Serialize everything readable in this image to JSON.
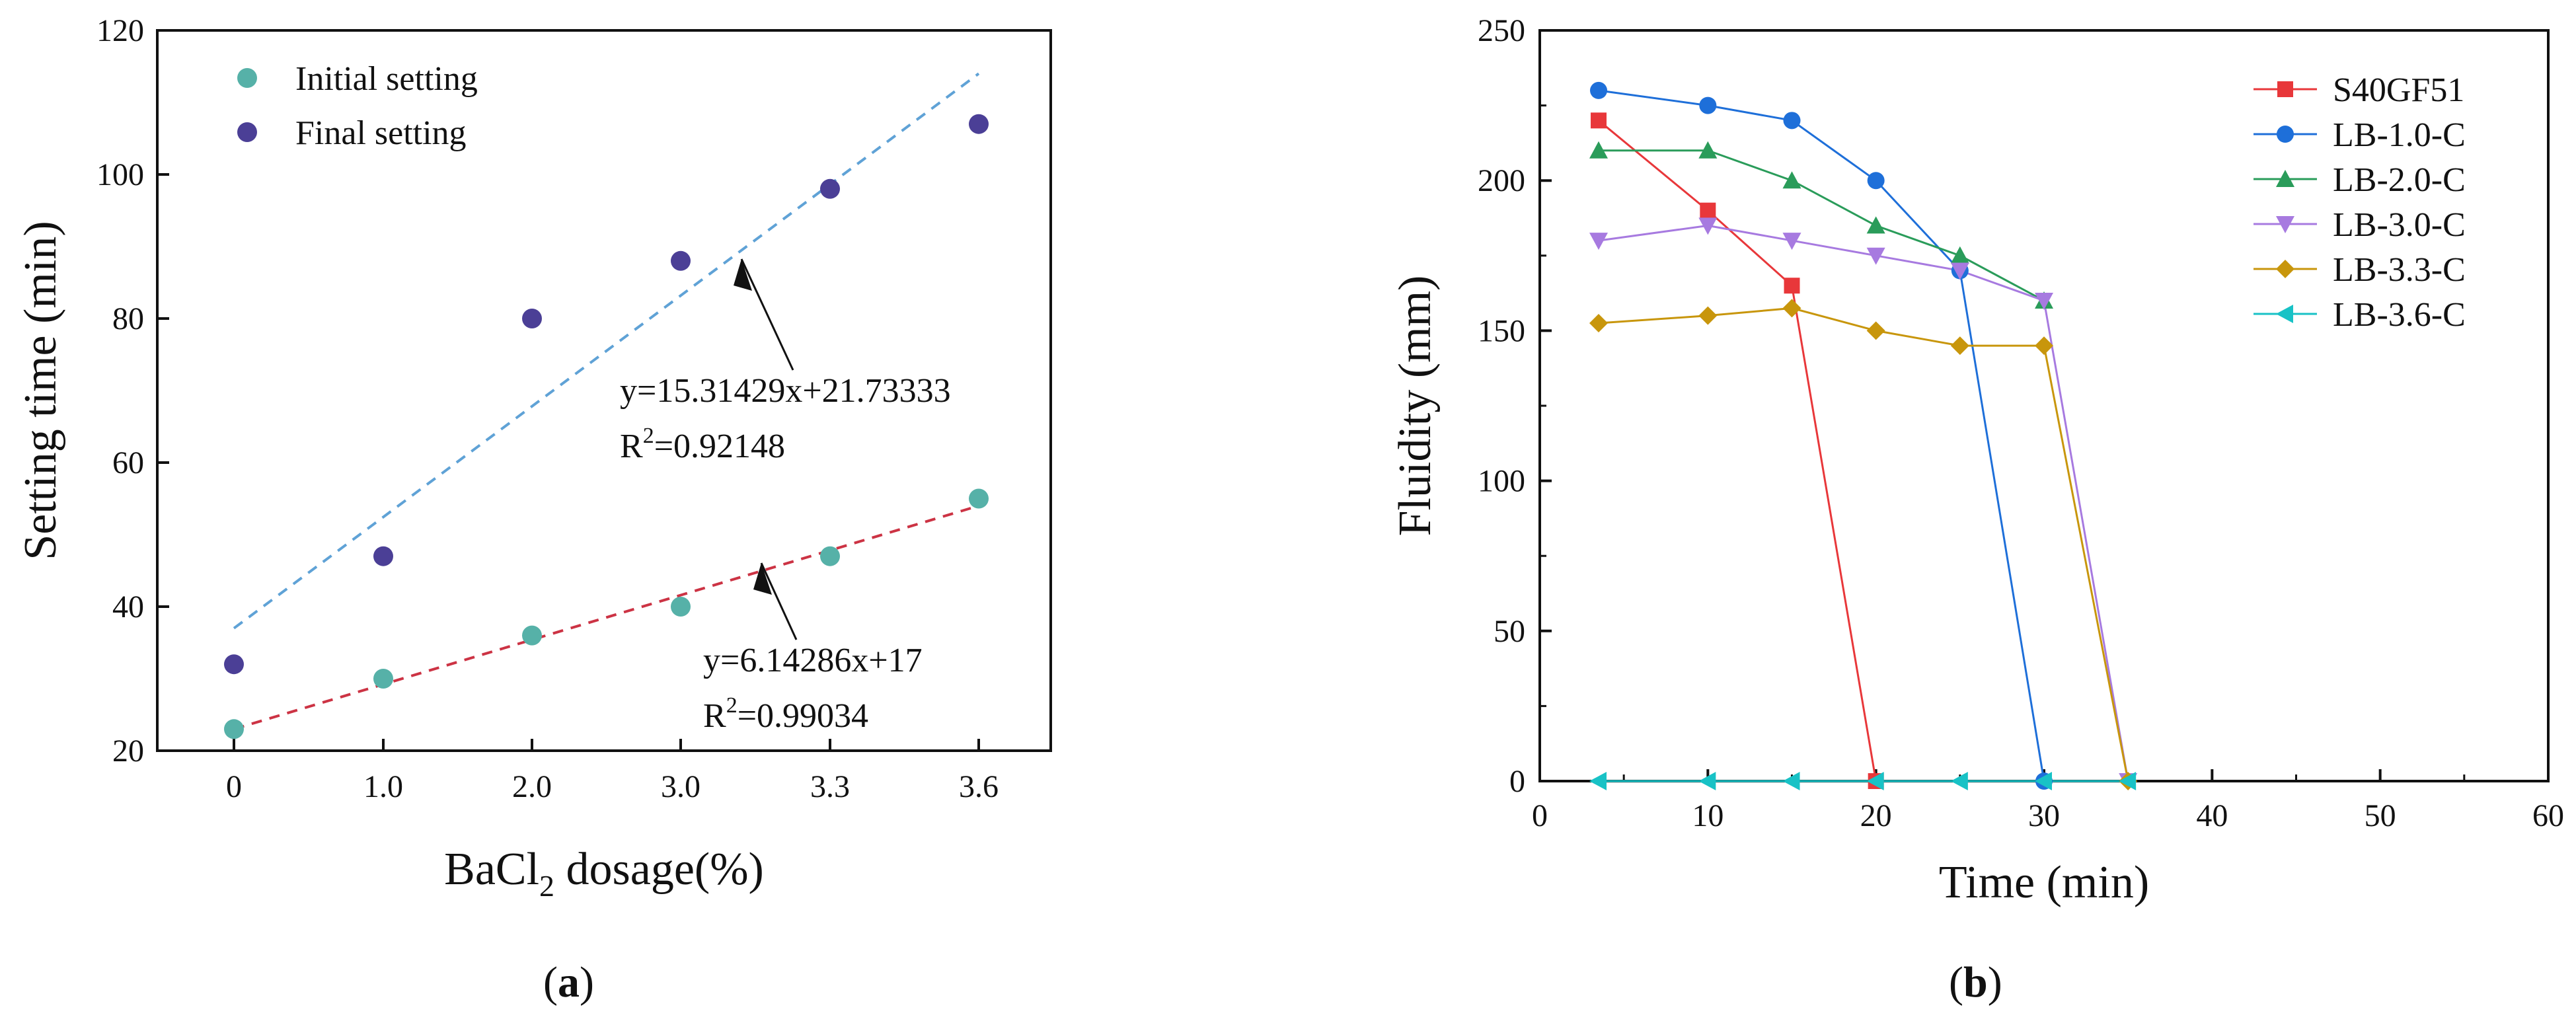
{
  "colors": {
    "initial_point": "#56b1a8",
    "final_point": "#4b3f96",
    "final_fit": "#5fa2d6",
    "initial_fit": "#cc3344",
    "axis": "#111111"
  },
  "chart_data": [
    {
      "type": "scatter",
      "panel": "a",
      "panel_label": "a",
      "xlabel": "BaCl₂ dosage(%)",
      "xlabel_parts": {
        "pre": "BaCl",
        "sub": "2",
        "post": " dosage(%)"
      },
      "ylabel": "Setting time (min)",
      "categories": [
        "0",
        "1.0",
        "2.0",
        "3.0",
        "3.3",
        "3.6"
      ],
      "ylim": [
        20,
        120
      ],
      "yticks": [
        20,
        40,
        60,
        80,
        100,
        120
      ],
      "series": [
        {
          "name": "Initial setting",
          "values": [
            23,
            30,
            36,
            40,
            47,
            55
          ],
          "color": "#56b1a8"
        },
        {
          "name": "Final setting",
          "values": [
            32,
            47,
            80,
            88,
            98,
            107
          ],
          "color": "#4b3f96"
        }
      ],
      "fits": [
        {
          "series": "Final setting",
          "color": "#5fa2d6",
          "start": 37,
          "end": 114,
          "equation": "y=15.31429x+21.73333",
          "r2_label": "R",
          "r2_sup": "2",
          "r2_value": "=0.92148"
        },
        {
          "series": "Initial setting",
          "color": "#cc3344",
          "start": 23,
          "end": 54,
          "equation": "y=6.14286x+17",
          "r2_label": "R",
          "r2_sup": "2",
          "r2_value": "=0.99034"
        }
      ],
      "legend": "top-left"
    },
    {
      "type": "line",
      "panel": "b",
      "panel_label": "b",
      "xlabel": "Time (min)",
      "ylabel": "Fluidity (mm)",
      "xlim": [
        0,
        60
      ],
      "ylim": [
        0,
        250
      ],
      "xticks": [
        0,
        10,
        20,
        30,
        40,
        50,
        60
      ],
      "yticks": [
        0,
        50,
        100,
        150,
        200,
        250
      ],
      "series": [
        {
          "name": "S40GF51",
          "color": "#e8373a",
          "marker": "square",
          "x": [
            3.5,
            10,
            15,
            20
          ],
          "y": [
            220,
            190,
            165,
            0
          ]
        },
        {
          "name": "LB-1.0-C",
          "color": "#1e6fd9",
          "marker": "circle",
          "x": [
            3.5,
            10,
            15,
            20,
            25,
            30
          ],
          "y": [
            230,
            225,
            220,
            200,
            170,
            0
          ]
        },
        {
          "name": "LB-2.0-C",
          "color": "#2a9c5a",
          "marker": "triangle-up",
          "x": [
            3.5,
            10,
            15,
            20,
            25,
            30
          ],
          "y": [
            210,
            210,
            200,
            185,
            175,
            160
          ]
        },
        {
          "name": "LB-3.0-C",
          "color": "#a77ae0",
          "marker": "triangle-down",
          "x": [
            3.5,
            10,
            15,
            20,
            25,
            30,
            35
          ],
          "y": [
            180,
            185,
            180,
            175,
            170,
            160,
            0
          ]
        },
        {
          "name": "LB-3.3-C",
          "color": "#c8960c",
          "marker": "diamond",
          "x": [
            3.5,
            10,
            15,
            20,
            25,
            30,
            35
          ],
          "y": [
            152.5,
            155,
            157.5,
            150,
            145,
            145,
            0
          ]
        },
        {
          "name": "LB-3.6-C",
          "color": "#18c2c6",
          "marker": "triangle-left",
          "x": [
            3.5,
            10,
            15,
            20,
            25,
            30,
            35
          ],
          "y": [
            0,
            0,
            0,
            0,
            0,
            0,
            0
          ]
        }
      ],
      "legend": "top-right"
    }
  ]
}
